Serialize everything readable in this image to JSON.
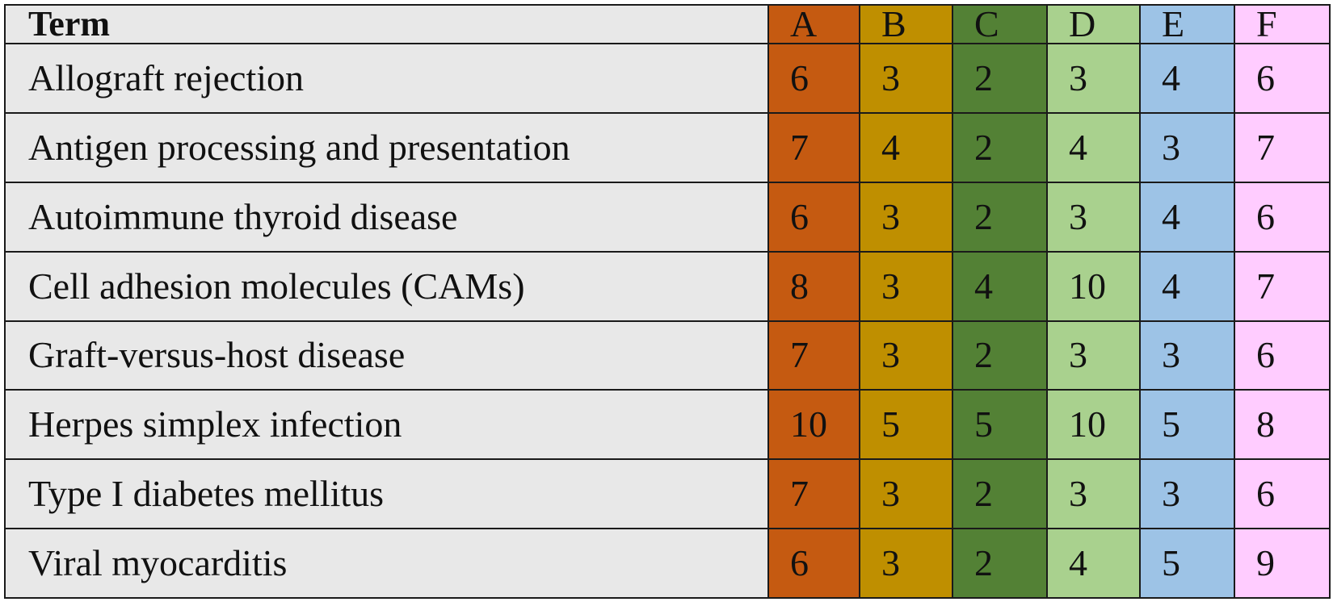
{
  "chart_data": {
    "type": "table",
    "term_header": "Term",
    "columns": [
      {
        "label": "A",
        "color": "#c55a11"
      },
      {
        "label": "B",
        "color": "#bf8f00"
      },
      {
        "label": "C",
        "color": "#538135"
      },
      {
        "label": "D",
        "color": "#a9d18e"
      },
      {
        "label": "E",
        "color": "#9dc3e6"
      },
      {
        "label": "F",
        "color": "#ffccff"
      }
    ],
    "term_cell_color": "#e8e8e8",
    "rows": [
      {
        "term": "Allograft rejection",
        "values": [
          6,
          3,
          2,
          3,
          4,
          6
        ]
      },
      {
        "term": "Antigen processing and presentation",
        "values": [
          7,
          4,
          2,
          4,
          3,
          7
        ]
      },
      {
        "term": "Autoimmune thyroid disease",
        "values": [
          6,
          3,
          2,
          3,
          4,
          6
        ]
      },
      {
        "term": "Cell adhesion molecules (CAMs)",
        "values": [
          8,
          3,
          4,
          10,
          4,
          7
        ]
      },
      {
        "term": "Graft-versus-host disease",
        "values": [
          7,
          3,
          2,
          3,
          3,
          6
        ]
      },
      {
        "term": "Herpes simplex infection",
        "values": [
          10,
          5,
          5,
          10,
          5,
          8
        ]
      },
      {
        "term": "Type I diabetes mellitus",
        "values": [
          7,
          3,
          2,
          3,
          3,
          6
        ]
      },
      {
        "term": "Viral myocarditis",
        "values": [
          6,
          3,
          2,
          4,
          5,
          9
        ]
      }
    ]
  }
}
